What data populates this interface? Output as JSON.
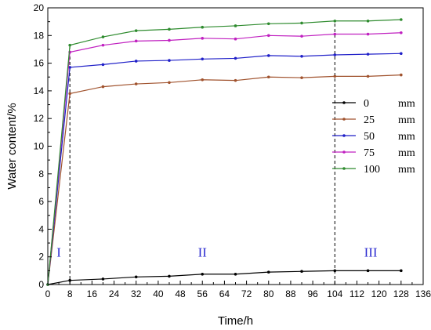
{
  "chart_data": {
    "type": "line",
    "xlabel": "Time/h",
    "ylabel": "Water content/%",
    "xlim": [
      0,
      136
    ],
    "ylim": [
      0,
      20
    ],
    "xticks": [
      0,
      8,
      16,
      24,
      32,
      40,
      48,
      56,
      64,
      72,
      80,
      88,
      96,
      104,
      112,
      120,
      128,
      136
    ],
    "yticks": [
      0,
      2,
      4,
      6,
      8,
      10,
      12,
      14,
      16,
      18,
      20
    ],
    "x": [
      0,
      8,
      20,
      32,
      44,
      56,
      68,
      80,
      92,
      104,
      116,
      128
    ],
    "series": [
      {
        "name": "0",
        "unit": "mm",
        "color": "#000000",
        "values": [
          0,
          0.3,
          0.4,
          0.55,
          0.6,
          0.75,
          0.75,
          0.9,
          0.95,
          1.0,
          1.0,
          1.0
        ]
      },
      {
        "name": "25",
        "unit": "mm",
        "color": "#a0522d",
        "values": [
          0,
          13.8,
          14.3,
          14.5,
          14.6,
          14.8,
          14.75,
          15.0,
          14.95,
          15.05,
          15.05,
          15.15
        ]
      },
      {
        "name": "50",
        "unit": "mm",
        "color": "#1f1fc8",
        "values": [
          0,
          15.7,
          15.9,
          16.15,
          16.2,
          16.3,
          16.35,
          16.55,
          16.5,
          16.6,
          16.65,
          16.7
        ]
      },
      {
        "name": "75",
        "unit": "mm",
        "color": "#c020c0",
        "values": [
          0,
          16.8,
          17.3,
          17.6,
          17.65,
          17.8,
          17.75,
          18.0,
          17.95,
          18.1,
          18.1,
          18.2
        ]
      },
      {
        "name": "100",
        "unit": "mm",
        "color": "#2e8b2e",
        "values": [
          0,
          17.3,
          17.9,
          18.35,
          18.45,
          18.6,
          18.7,
          18.85,
          18.9,
          19.05,
          19.05,
          19.15
        ]
      }
    ],
    "dividers": [
      8,
      104
    ],
    "stages": [
      {
        "label": "I",
        "x": 4,
        "y": 2
      },
      {
        "label": "II",
        "x": 56,
        "y": 2
      },
      {
        "label": "III",
        "x": 117,
        "y": 2
      }
    ],
    "legend_position": "right",
    "grid": false
  }
}
